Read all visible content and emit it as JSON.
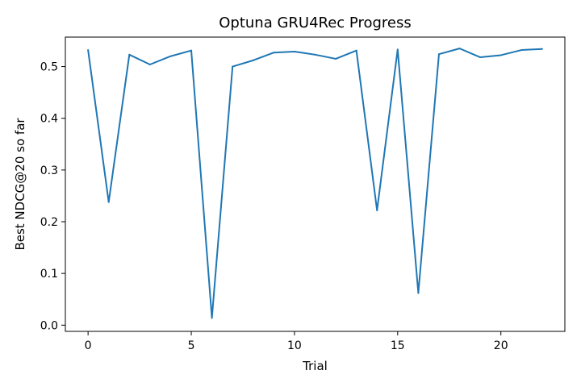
{
  "chart_data": {
    "type": "line",
    "title": "Optuna GRU4Rec Progress",
    "xlabel": "Trial",
    "ylabel": "Best NDCG@20 so far",
    "xlim": [
      -1.1,
      23.1
    ],
    "ylim": [
      -0.012,
      0.557
    ],
    "xticks": [
      0,
      5,
      10,
      15,
      20
    ],
    "yticks": [
      0.0,
      0.1,
      0.2,
      0.3,
      0.4,
      0.5
    ],
    "grid": false,
    "line_color": "#1f77b4",
    "series": [
      {
        "x": [
          0,
          1,
          2,
          3,
          4,
          5,
          6,
          7,
          8,
          9,
          10,
          11,
          12,
          13,
          14,
          15,
          16,
          17,
          18,
          19,
          20,
          21,
          22
        ],
        "values": [
          0.532,
          0.238,
          0.523,
          0.504,
          0.52,
          0.531,
          0.014,
          0.5,
          0.512,
          0.527,
          0.529,
          0.523,
          0.515,
          0.531,
          0.222,
          0.533,
          0.062,
          0.524,
          0.535,
          0.518,
          0.522,
          0.532,
          0.534
        ]
      }
    ]
  }
}
